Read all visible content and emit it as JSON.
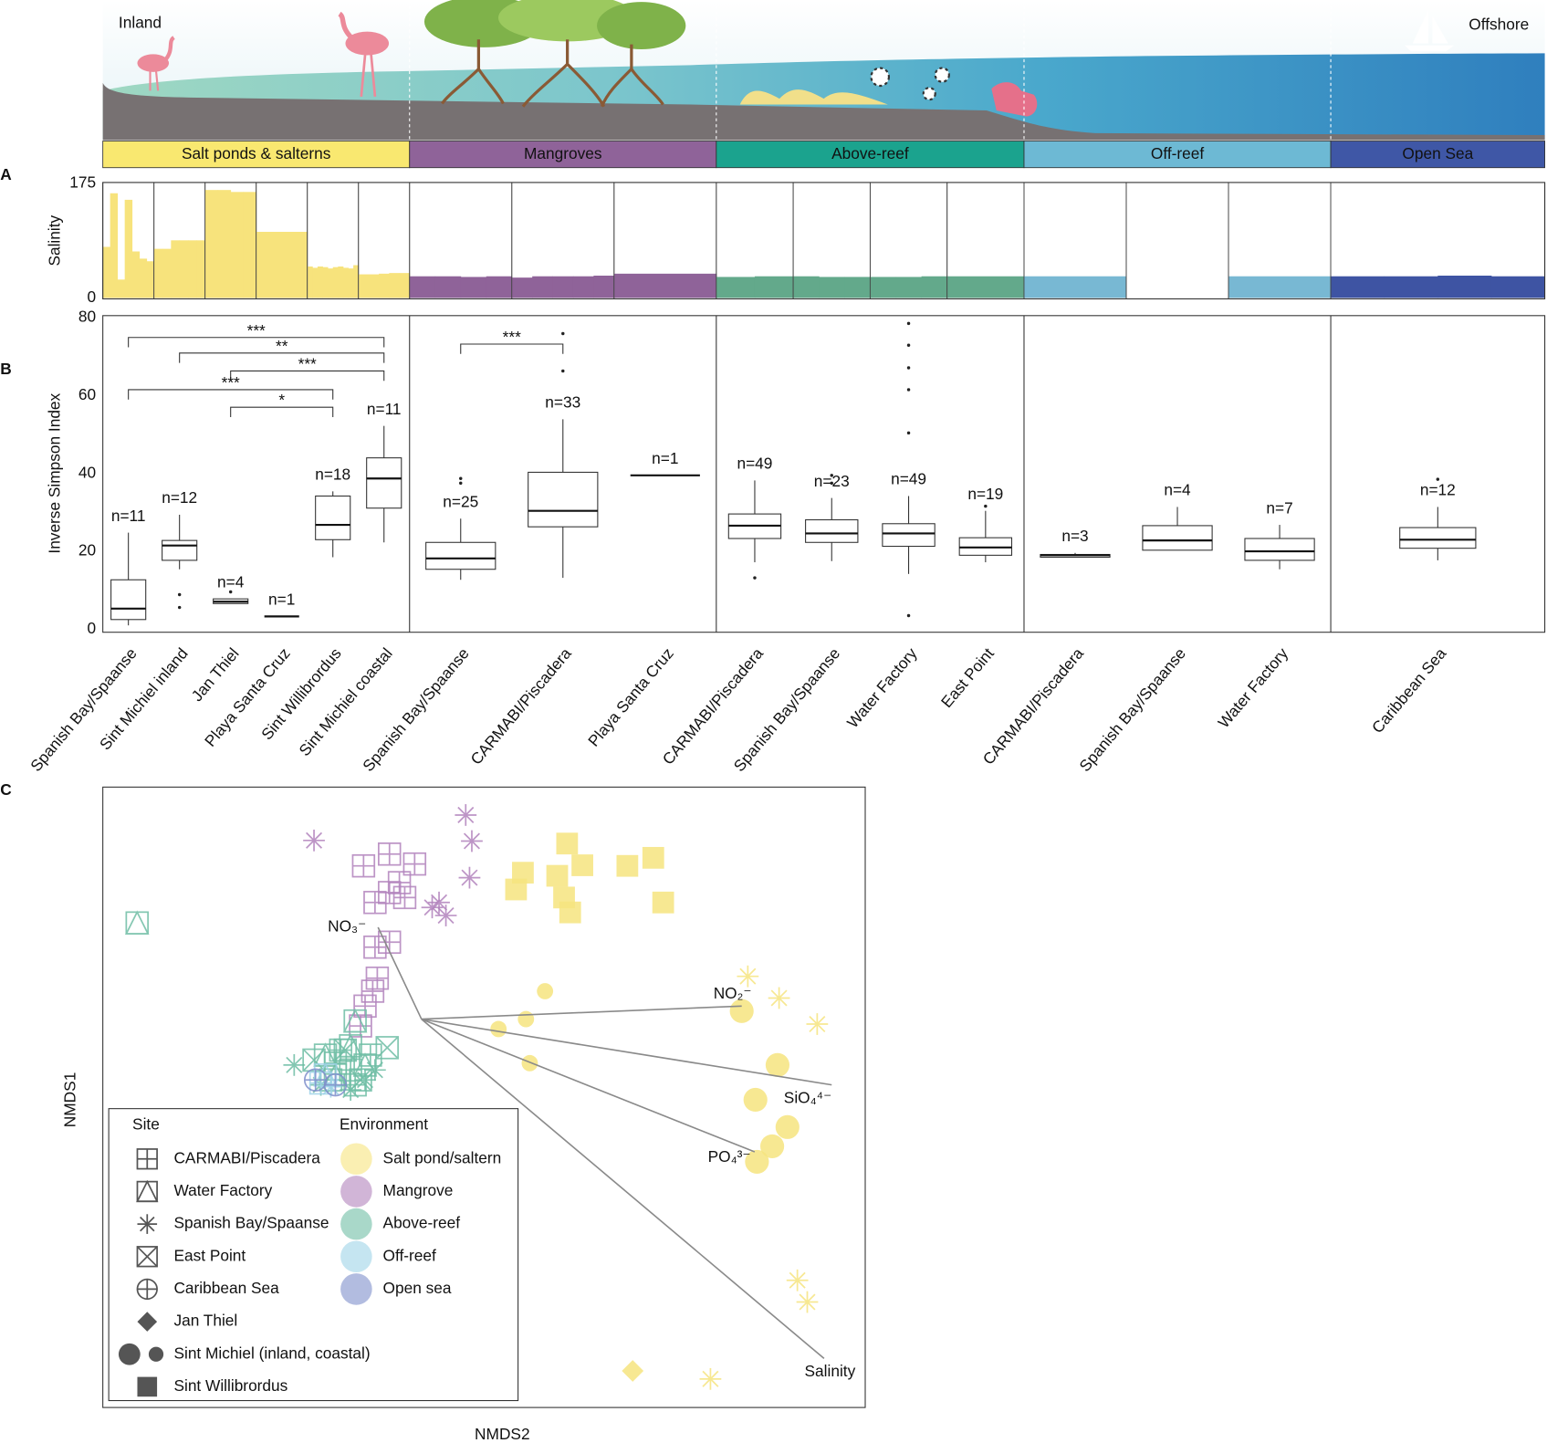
{
  "illustration": {
    "left": "Inland",
    "right": "Offshore"
  },
  "environments": [
    {
      "name": "Salt ponds & salterns",
      "color": "#f9e870",
      "label_color": "#111111"
    },
    {
      "name": "Mangroves",
      "color": "#8f6399",
      "label_color": "#ffffff"
    },
    {
      "name": "Above-reef",
      "color": "#1ba38e",
      "label_color": "#ffffff"
    },
    {
      "name": "Off-reef",
      "color": "#6db9d4",
      "label_color": "#ffffff"
    },
    {
      "name": "Open Sea",
      "color": "#3f57a6",
      "label_color": "#ffffff"
    }
  ],
  "chart_data": [
    {
      "type": "bar",
      "panel": "A",
      "ylabel": "Salinity",
      "ylim": [
        0,
        175
      ],
      "yticks": [
        0,
        175
      ],
      "groups": [
        {
          "color": "#f7e37c",
          "sites": [
            [
              78,
              160,
              28,
              150,
              71,
              60,
              56
            ],
            [
              75,
              75,
              88,
              88,
              88,
              88
            ],
            [
              165,
              165,
              162,
              162
            ],
            [
              101
            ],
            [
              48,
              46,
              48,
              47,
              45,
              47,
              48,
              46,
              45,
              50
            ],
            [
              36,
              36,
              37,
              38,
              38
            ]
          ]
        },
        {
          "color": "#8f6399",
          "sites": [
            [
              33,
              33,
              32,
              33
            ],
            [
              31,
              33,
              33,
              33,
              34
            ],
            [
              37
            ]
          ]
        },
        {
          "color": "#63a98b",
          "sites": [
            [
              32,
              33
            ],
            [
              33,
              32,
              32
            ],
            [
              32,
              32,
              33
            ],
            [
              33
            ]
          ]
        },
        {
          "color": "#78b8d3",
          "sites": [
            [
              33
            ],
            [],
            [
              33
            ]
          ]
        },
        {
          "color": "#3e54a3",
          "sites": [
            [
              33,
              33,
              34,
              33
            ]
          ]
        }
      ]
    },
    {
      "type": "box",
      "panel": "B",
      "ylabel": "Inverse Simpson Index",
      "ylim": [
        0,
        80
      ],
      "yticks": [
        0,
        20,
        40,
        60,
        80
      ],
      "groups": [
        {
          "categories": [
            "Spanish Bay/Spaanse",
            "Sint Michiel inland",
            "Jan Thiel",
            "Playa Santa Cruz",
            "Sint Willibrordus",
            "Sint Michiel coastal"
          ],
          "boxes": [
            {
              "min": 1,
              "q1": 2.5,
              "median": 5.3,
              "q3": 12.7,
              "max": 24.8,
              "outliers": []
            },
            {
              "min": 15.4,
              "q1": 17.7,
              "median": 21.5,
              "q3": 22.8,
              "max": 29.4,
              "outliers": [
                8.9,
                5.6
              ]
            },
            {
              "min": 6.6,
              "q1": 6.6,
              "median": 7.1,
              "q3": 7.8,
              "max": 7.8,
              "outliers": [
                9.6
              ]
            },
            {
              "min": 3.3,
              "q1": 3.3,
              "median": 3.3,
              "q3": 3.3,
              "max": 3.3,
              "outliers": []
            },
            {
              "min": 18.5,
              "q1": 23,
              "median": 26.8,
              "q3": 34.2,
              "max": 35.4,
              "outliers": []
            },
            {
              "min": 22.3,
              "q1": 31.1,
              "median": 38.7,
              "q3": 44,
              "max": 52.2,
              "outliers": []
            }
          ],
          "n_labels": [
            "n=11",
            "n=12",
            "n=4",
            "n=1",
            "n=18",
            "n=11"
          ],
          "brackets": [
            {
              "label": "***",
              "pair": [
                0,
                5
              ],
              "y": 74.9
            },
            {
              "label": "**",
              "pair": [
                1,
                5
              ],
              "y": 70.9
            },
            {
              "label": "***",
              "pair": [
                2,
                5
              ],
              "y": 66.3
            },
            {
              "label": "***",
              "pair": [
                0,
                4
              ],
              "y": 61.5
            },
            {
              "label": "*",
              "pair": [
                2,
                4
              ],
              "y": 57
            }
          ]
        },
        {
          "categories": [
            "Spanish Bay/Spaanse",
            "CARMABI/Piscadera",
            "Playa Santa Cruz"
          ],
          "boxes": [
            {
              "min": 12.7,
              "q1": 15.4,
              "median": 18.2,
              "q3": 22.3,
              "max": 28.4,
              "outliers": [
                38.7,
                37.5
              ]
            },
            {
              "min": 13.2,
              "q1": 26.3,
              "median": 30.4,
              "q3": 40.3,
              "max": 53.9,
              "outliers": [
                75.9,
                66.3
              ]
            },
            {
              "min": 39.5,
              "q1": 39.5,
              "median": 39.5,
              "q3": 39.5,
              "max": 39.5,
              "outliers": []
            }
          ],
          "n_labels": [
            "n=25",
            "n=33",
            "n=1"
          ],
          "brackets": [
            {
              "label": "***",
              "pair": [
                0,
                1
              ],
              "y": 73.2
            }
          ]
        },
        {
          "categories": [
            "CARMABI/Piscadera",
            "Spanish Bay/Spaanse",
            "Water Factory",
            "East Point"
          ],
          "boxes": [
            {
              "min": 17.2,
              "q1": 23.3,
              "median": 26.6,
              "q3": 29.6,
              "max": 38.2,
              "outliers": [
                13.2
              ]
            },
            {
              "min": 17.5,
              "q1": 22.3,
              "median": 24.6,
              "q3": 28.1,
              "max": 33.7,
              "outliers": [
                39.5,
                37.5
              ]
            },
            {
              "min": 14.2,
              "q1": 21.3,
              "median": 24.6,
              "q3": 27.1,
              "max": 34.2,
              "outliers": [
                78.5,
                72.9,
                67.1,
                61.5,
                50.4,
                3.5
              ]
            },
            {
              "min": 17.2,
              "q1": 19,
              "median": 21,
              "q3": 23.5,
              "max": 30.4,
              "outliers": [
                31.6
              ]
            }
          ],
          "n_labels": [
            "n=49",
            "n=23",
            "n=49",
            "n=19"
          ],
          "brackets": []
        },
        {
          "categories": [
            "CARMABI/Piscadera",
            "Spanish Bay/Spaanse",
            "Water Factory"
          ],
          "boxes": [
            {
              "min": 18.5,
              "q1": 18.5,
              "median": 19,
              "q3": 19.2,
              "max": 19.6,
              "outliers": []
            },
            {
              "min": 20.3,
              "q1": 20.3,
              "median": 22.8,
              "q3": 26.6,
              "max": 31.4,
              "outliers": []
            },
            {
              "min": 15.4,
              "q1": 17.7,
              "median": 20,
              "q3": 23.3,
              "max": 26.8,
              "outliers": []
            }
          ],
          "n_labels": [
            "n=3",
            "n=4",
            "n=7"
          ],
          "brackets": []
        },
        {
          "categories": [
            "Caribbean Sea"
          ],
          "boxes": [
            {
              "min": 17.7,
              "q1": 20.8,
              "median": 23,
              "q3": 26.1,
              "max": 31.4,
              "outliers": [
                38.5
              ]
            }
          ],
          "n_labels": [
            "n=12"
          ],
          "brackets": []
        }
      ]
    },
    {
      "type": "scatter",
      "panel": "C",
      "xlabel": "NMDS2",
      "ylabel": "NMDS1",
      "xlim": [
        0,
        100
      ],
      "ylim": [
        0,
        100
      ],
      "series": [
        {
          "environment": "Mangrove",
          "marker": "asterisk",
          "x": [
            27.7,
            47.6,
            48.4,
            48.1,
            44.1,
            45.0,
            43.2
          ],
          "y": [
            91.4,
            95.5,
            91.3,
            85.4,
            81.4,
            79.3,
            80.6
          ]
        },
        {
          "environment": "Mangrove",
          "marker": "square-plus",
          "x": [
            34.2,
            37.6,
            40.9,
            38.9,
            39.6,
            35.7,
            37.6,
            35.7,
            37.6,
            36.0,
            35.4,
            34.4,
            33.8
          ],
          "y": [
            87.3,
            89.2,
            87.6,
            84.6,
            82.2,
            81.4,
            83.0,
            74.2,
            75.0,
            69.2,
            67.1,
            64.7,
            61.5
          ]
        },
        {
          "environment": "Salt pond/saltern",
          "marker": "square-filled",
          "x": [
            60.9,
            55.1,
            62.9,
            68.8,
            72.2,
            54.2,
            59.6,
            60.5,
            61.3,
            73.5
          ],
          "y": [
            90.9,
            86.2,
            87.4,
            87.3,
            88.6,
            83.5,
            85.7,
            82.2,
            79.8,
            81.4
          ]
        },
        {
          "environment": "Salt pond/saltern",
          "marker": "asterisk",
          "x": [
            84.6,
            88.7,
            93.7,
            91.1,
            92.4,
            79.7
          ],
          "y": [
            69.5,
            66.0,
            61.8,
            20.5,
            17.0,
            4.6
          ]
        },
        {
          "environment": "Salt pond/saltern",
          "marker": "diamond",
          "x": [
            69.5
          ],
          "y": [
            5.9
          ]
        },
        {
          "environment": "Salt pond/saltern",
          "marker": "circle-large",
          "x": [
            83.8,
            88.5,
            85.6,
            89.8,
            87.8,
            85.8
          ],
          "y": [
            63.9,
            55.2,
            49.6,
            45.2,
            42.1,
            39.6
          ]
        },
        {
          "environment": "Salt pond/saltern",
          "marker": "circle-small",
          "x": [
            58.0,
            55.5,
            51.9,
            56.0
          ],
          "y": [
            67.1,
            62.6,
            61.0,
            55.5
          ]
        },
        {
          "environment": "Above-reef",
          "marker": "triangle",
          "x": [
            4.5,
            33.1,
            32.5,
            29.2,
            34.4,
            30.5
          ],
          "y": [
            78.1,
            62.3,
            58.3,
            56.8,
            55.2,
            53.6
          ]
        },
        {
          "environment": "Above-reef",
          "marker": "square-x",
          "x": [
            37.3,
            31.8,
            27.7,
            33.8
          ],
          "y": [
            58.0,
            57.6,
            56.0,
            52.8
          ]
        },
        {
          "environment": "Above-reef",
          "marker": "square-plus",
          "x": [
            30.5,
            32.5,
            29.9,
            35.1,
            33.1,
            31.2
          ],
          "y": [
            55.5,
            54.4,
            52.8,
            56.8,
            52.0,
            57.6
          ]
        },
        {
          "environment": "Above-reef",
          "marker": "asterisk",
          "x": [
            25.1,
            35.7,
            28.6,
            32.5,
            34.4
          ],
          "y": [
            55.2,
            54.4,
            52.0,
            51.2,
            52.8
          ]
        },
        {
          "environment": "Off-reef",
          "marker": "square-plus",
          "x": [
            28.6
          ],
          "y": [
            52.3
          ]
        },
        {
          "environment": "Off-reef",
          "marker": "asterisk",
          "x": [
            29.9
          ],
          "y": [
            51.7
          ]
        },
        {
          "environment": "Off-reef",
          "marker": "triangle",
          "x": [
            29.2
          ],
          "y": [
            53.6
          ]
        },
        {
          "environment": "Open sea",
          "marker": "circle-plus",
          "x": [
            27.9,
            30.5
          ],
          "y": [
            52.8,
            52.0
          ]
        }
      ],
      "vector_origin": {
        "x": 41.8,
        "y": 62.6
      },
      "vectors": [
        {
          "label": "NO₃⁻",
          "x": 36.1,
          "y": 77.4
        },
        {
          "label": "NO₂⁻",
          "x": 83.8,
          "y": 64.7
        },
        {
          "label": "SiO₄⁴⁻",
          "x": 95.6,
          "y": 52.0
        },
        {
          "label": "PO₄³⁻",
          "x": 85.5,
          "y": 41.2
        },
        {
          "label": "Salinity",
          "x": 94.6,
          "y": 7.9
        }
      ],
      "legend": {
        "site_title": "Site",
        "sites": [
          {
            "name": "CARMABI/Piscadera",
            "marker": [
              "square-plus"
            ]
          },
          {
            "name": "Water Factory",
            "marker": [
              "triangle"
            ]
          },
          {
            "name": "Spanish Bay/Spaanse",
            "marker": [
              "asterisk"
            ]
          },
          {
            "name": "East Point",
            "marker": [
              "square-x"
            ]
          },
          {
            "name": "Caribbean Sea",
            "marker": [
              "circle-plus"
            ]
          },
          {
            "name": "Jan Thiel",
            "marker": [
              "diamond"
            ]
          },
          {
            "name": "Sint Michiel (inland, coastal)",
            "marker": [
              "circle-large",
              "circle-small"
            ]
          },
          {
            "name": "Sint Willibrordus",
            "marker": [
              "square-filled"
            ]
          }
        ],
        "environment_title": "Environment",
        "environments": [
          {
            "name": "Salt pond/saltern",
            "color": "#f6e47f"
          },
          {
            "name": "Mangrove",
            "color": "#b283bd"
          },
          {
            "name": "Above-reef",
            "color": "#6fbea5"
          },
          {
            "name": "Off-reef",
            "color": "#9fd3e8"
          },
          {
            "name": "Open sea",
            "color": "#7f8fcb"
          }
        ]
      }
    }
  ]
}
